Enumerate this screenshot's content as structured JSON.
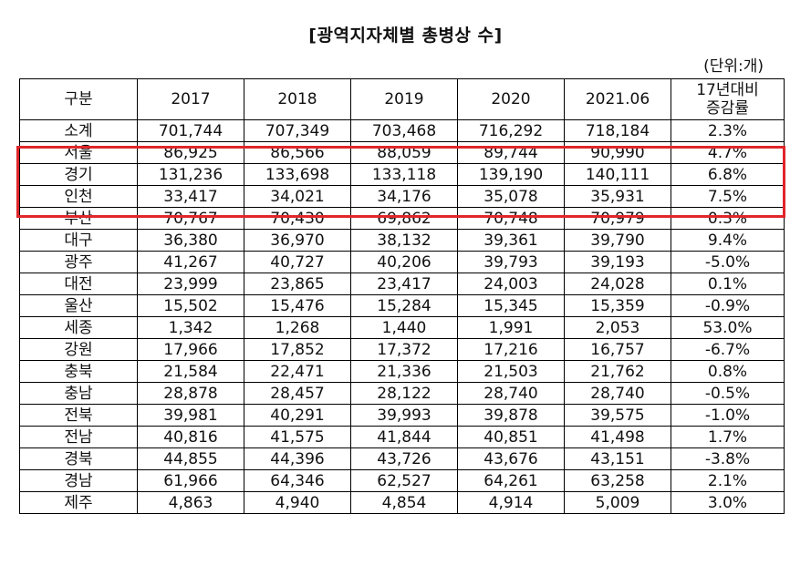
{
  "title": "[광역지자체별 총병상 수]",
  "unit": "(단위:개)",
  "header": {
    "region": "구분",
    "years": [
      "2017",
      "2018",
      "2019",
      "2020",
      "2021.06"
    ],
    "growth_line1": "17년대비",
    "growth_line2": "증감률"
  },
  "rows": [
    {
      "region": "소계",
      "values": [
        "701,744",
        "707,349",
        "703,468",
        "716,292",
        "718,184"
      ],
      "growth": "2.3%"
    },
    {
      "region": "서울",
      "values": [
        "86,925",
        "86,566",
        "88,059",
        "89,744",
        "90,990"
      ],
      "growth": "4.7%"
    },
    {
      "region": "경기",
      "values": [
        "131,236",
        "133,698",
        "133,118",
        "139,190",
        "140,111"
      ],
      "growth": "6.8%"
    },
    {
      "region": "인천",
      "values": [
        "33,417",
        "34,021",
        "34,176",
        "35,078",
        "35,931"
      ],
      "growth": "7.5%"
    },
    {
      "region": "부산",
      "values": [
        "70,767",
        "70,430",
        "69,862",
        "70,748",
        "70,979"
      ],
      "growth": "0.3%"
    },
    {
      "region": "대구",
      "values": [
        "36,380",
        "36,970",
        "38,132",
        "39,361",
        "39,790"
      ],
      "growth": "9.4%"
    },
    {
      "region": "광주",
      "values": [
        "41,267",
        "40,727",
        "40,206",
        "39,793",
        "39,193"
      ],
      "growth": "-5.0%"
    },
    {
      "region": "대전",
      "values": [
        "23,999",
        "23,865",
        "23,417",
        "24,003",
        "24,028"
      ],
      "growth": "0.1%"
    },
    {
      "region": "울산",
      "values": [
        "15,502",
        "15,476",
        "15,284",
        "15,345",
        "15,359"
      ],
      "growth": "-0.9%"
    },
    {
      "region": "세종",
      "values": [
        "1,342",
        "1,268",
        "1,440",
        "1,991",
        "2,053"
      ],
      "growth": "53.0%"
    },
    {
      "region": "강원",
      "values": [
        "17,966",
        "17,852",
        "17,372",
        "17,216",
        "16,757"
      ],
      "growth": "-6.7%"
    },
    {
      "region": "충북",
      "values": [
        "21,584",
        "22,471",
        "21,336",
        "21,503",
        "21,762"
      ],
      "growth": "0.8%"
    },
    {
      "region": "충남",
      "values": [
        "28,878",
        "28,457",
        "28,122",
        "28,740",
        "28,740"
      ],
      "growth": "-0.5%"
    },
    {
      "region": "전북",
      "values": [
        "39,981",
        "40,291",
        "39,993",
        "39,878",
        "39,575"
      ],
      "growth": "-1.0%"
    },
    {
      "region": "전남",
      "values": [
        "40,816",
        "41,575",
        "41,844",
        "40,851",
        "41,498"
      ],
      "growth": "1.7%"
    },
    {
      "region": "경북",
      "values": [
        "44,855",
        "44,396",
        "43,726",
        "43,676",
        "43,151"
      ],
      "growth": "-3.8%"
    },
    {
      "region": "경남",
      "values": [
        "61,966",
        "64,346",
        "62,527",
        "64,261",
        "63,258"
      ],
      "growth": "2.1%"
    },
    {
      "region": "제주",
      "values": [
        "4,863",
        "4,940",
        "4,854",
        "4,914",
        "5,009"
      ],
      "growth": "3.0%"
    }
  ],
  "highlight_color": "#e0262b"
}
